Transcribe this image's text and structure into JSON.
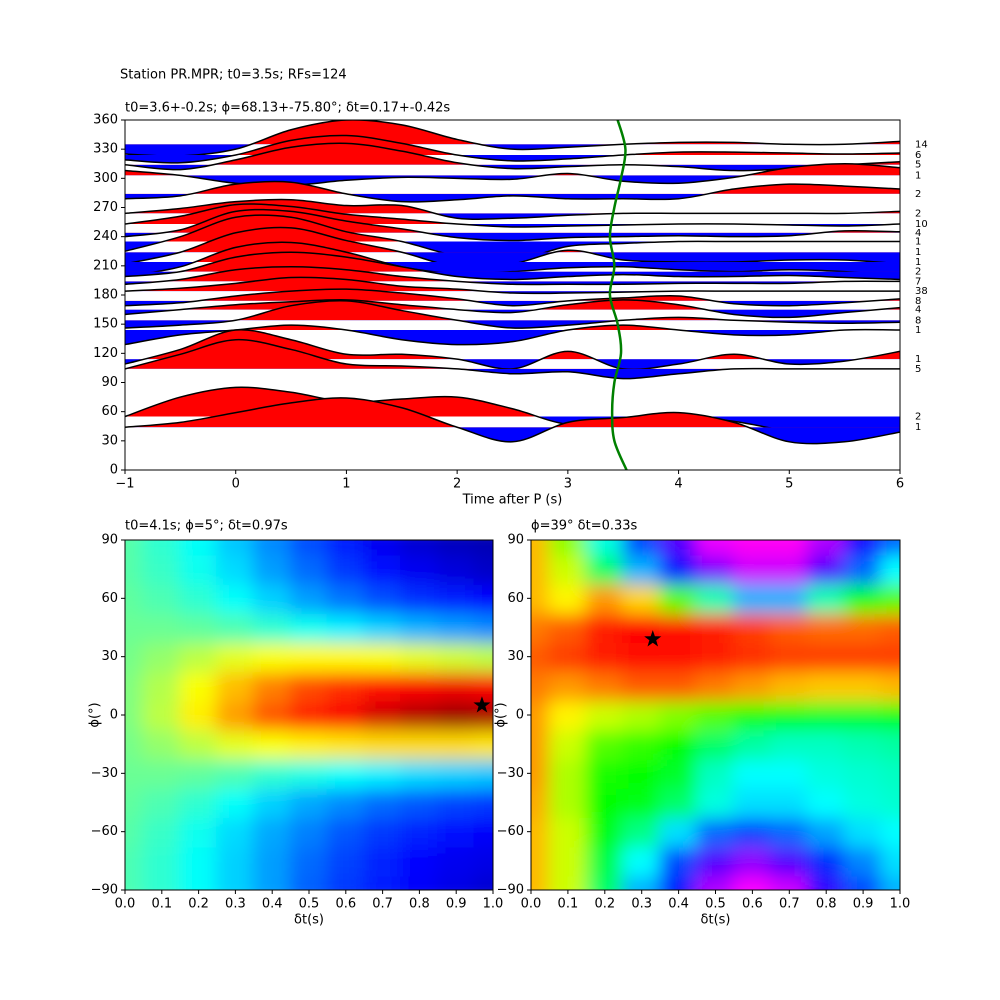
{
  "chart_data": [
    {
      "type": "wiggle",
      "suptitle": "Station PR.MPR; t0=3.5s; RFs=124",
      "title": "t0=3.6+-0.2s; ϕ=68.13+-75.80°; δt=0.17+-0.42s",
      "xlabel": "Time after P (s)",
      "xlim": [
        -1,
        6
      ],
      "xticks": [
        {
          "value": -1,
          "label": "−1"
        },
        0,
        1,
        2,
        3,
        4,
        5,
        6
      ],
      "ylim": [
        0,
        360
      ],
      "yticks": [
        0,
        30,
        60,
        90,
        120,
        150,
        180,
        210,
        240,
        270,
        300,
        330,
        360
      ],
      "positive_color": "#ff0000",
      "negative_color": "#0000ff",
      "line_color": "#000000",
      "x": [
        -1,
        -0.5,
        0,
        0.5,
        1,
        1.5,
        2,
        2.5,
        3,
        3.5,
        4,
        4.5,
        5,
        5.5,
        6
      ],
      "traces": [
        {
          "baz": 335,
          "count": 14,
          "amplitudes": [
            -10,
            -12,
            -5,
            15,
            25,
            20,
            5,
            -5,
            -3,
            0,
            2,
            2,
            0,
            0,
            3
          ]
        },
        {
          "baz": 324,
          "count": 6,
          "amplitudes": [
            -5,
            -8,
            0,
            15,
            20,
            12,
            0,
            -6,
            -4,
            0,
            3,
            3,
            2,
            1,
            2
          ]
        },
        {
          "baz": 314,
          "count": 5,
          "amplitudes": [
            0,
            -5,
            5,
            18,
            22,
            14,
            2,
            -4,
            -2,
            0,
            -2,
            -6,
            -4,
            0,
            3
          ]
        },
        {
          "baz": 303,
          "count": 1,
          "amplitudes": [
            5,
            0,
            -8,
            -10,
            -5,
            -2,
            -3,
            -4,
            2,
            -6,
            -8,
            -2,
            8,
            12,
            8
          ]
        },
        {
          "baz": 284,
          "count": 2,
          "amplitudes": [
            -5,
            -2,
            10,
            12,
            0,
            -8,
            -6,
            -2,
            -5,
            -5,
            -5,
            5,
            10,
            8,
            5
          ]
        },
        {
          "baz": 264,
          "count": 2,
          "amplitudes": [
            0,
            5,
            12,
            14,
            8,
            8,
            -5,
            -5,
            -2,
            0,
            0,
            0,
            0,
            0,
            2
          ]
        },
        {
          "baz": 253,
          "count": 10,
          "amplitudes": [
            0,
            8,
            20,
            18,
            10,
            5,
            0,
            -3,
            -2,
            -1,
            0,
            0,
            -1,
            -2,
            0
          ]
        },
        {
          "baz": 244,
          "count": 4,
          "amplitudes": [
            -4,
            3,
            22,
            22,
            12,
            4,
            -5,
            -8,
            -5,
            -4,
            -3,
            -4,
            -3,
            2,
            1
          ]
        },
        {
          "baz": 235,
          "count": 1,
          "amplitudes": [
            -10,
            5,
            25,
            25,
            10,
            0,
            -15,
            -20,
            -5,
            -2,
            0,
            0,
            0,
            0,
            0
          ]
        },
        {
          "baz": 224,
          "count": 1,
          "amplitudes": [
            -12,
            0,
            20,
            25,
            12,
            0,
            -15,
            -12,
            2,
            -8,
            -10,
            -10,
            -8,
            -8,
            -12
          ]
        },
        {
          "baz": 214,
          "count": 1,
          "amplitudes": [
            -15,
            -5,
            15,
            20,
            10,
            -5,
            -12,
            -10,
            -6,
            -5,
            -8,
            -10,
            -8,
            -10,
            -15
          ]
        },
        {
          "baz": 204,
          "count": 2,
          "amplitudes": [
            -5,
            0,
            15,
            20,
            15,
            5,
            -5,
            -8,
            -5,
            -3,
            -5,
            -5,
            -4,
            -6,
            -8
          ]
        },
        {
          "baz": 194,
          "count": 7,
          "amplitudes": [
            -3,
            2,
            12,
            15,
            12,
            5,
            0,
            -3,
            -3,
            -3,
            -2,
            -2,
            -2,
            0,
            0
          ]
        },
        {
          "baz": 184,
          "count": 38,
          "amplitudes": [
            0,
            3,
            8,
            14,
            12,
            5,
            2,
            -2,
            -2,
            -1,
            0,
            0,
            0,
            0,
            0
          ]
        },
        {
          "baz": 174,
          "count": 8,
          "amplitudes": [
            -5,
            -2,
            5,
            10,
            12,
            8,
            2,
            -5,
            0,
            3,
            5,
            -3,
            -5,
            -2,
            2
          ]
        },
        {
          "baz": 165,
          "count": 4,
          "amplitudes": [
            -5,
            0,
            5,
            8,
            10,
            5,
            0,
            -3,
            5,
            10,
            5,
            -5,
            -8,
            -3,
            2
          ]
        },
        {
          "baz": 154,
          "count": 8,
          "amplitudes": [
            -8,
            -5,
            0,
            15,
            20,
            10,
            0,
            -8,
            -5,
            0,
            3,
            0,
            -2,
            -3,
            -2
          ]
        },
        {
          "baz": 144,
          "count": 1,
          "amplitudes": [
            -15,
            -5,
            0,
            5,
            0,
            -10,
            -15,
            -12,
            0,
            5,
            0,
            -5,
            -5,
            0,
            0
          ]
        },
        {
          "baz": 114,
          "count": 1,
          "amplitudes": [
            -5,
            10,
            30,
            20,
            5,
            5,
            0,
            -10,
            8,
            -10,
            -5,
            5,
            -5,
            -2,
            8
          ]
        },
        {
          "baz": 104,
          "count": 5,
          "amplitudes": [
            0,
            15,
            30,
            20,
            5,
            3,
            0,
            -5,
            -3,
            -10,
            -5,
            0,
            0,
            0,
            0
          ]
        },
        {
          "baz": 55,
          "count": 2,
          "amplitudes": [
            0,
            20,
            30,
            25,
            15,
            18,
            20,
            8,
            -8,
            -5,
            0,
            -5,
            -15,
            -20,
            -15
          ]
        },
        {
          "baz": 44,
          "count": 1,
          "amplitudes": [
            0,
            5,
            15,
            25,
            30,
            20,
            0,
            -15,
            5,
            10,
            15,
            5,
            -15,
            -15,
            -5
          ]
        }
      ],
      "t0_curve": {
        "color": "#008000",
        "y": [
          0,
          30,
          60,
          90,
          120,
          150,
          180,
          210,
          240,
          270,
          300,
          330,
          360
        ],
        "x": [
          3.53,
          3.42,
          3.4,
          3.42,
          3.48,
          3.45,
          3.38,
          3.42,
          3.38,
          3.42,
          3.48,
          3.52,
          3.45
        ]
      }
    },
    {
      "type": "heatmap",
      "title": "t0=4.1s; ϕ=5°; δt=0.97s",
      "colormap": "jet",
      "xlabel": "δt(s)",
      "ylabel": "ϕ(°)",
      "xlim": [
        0,
        1
      ],
      "xticks": [
        {
          "value": 0,
          "label": "0.0"
        },
        0.1,
        0.2,
        0.3,
        0.4,
        0.5,
        0.6,
        0.7,
        0.8,
        0.9,
        {
          "value": 1,
          "label": "1.0"
        }
      ],
      "ylim": [
        -90,
        90
      ],
      "yticks": [
        {
          "value": -90,
          "label": "−90"
        },
        {
          "value": -60,
          "label": "−60"
        },
        {
          "value": -30,
          "label": "−30"
        },
        0,
        30,
        60,
        90
      ],
      "x": [
        0,
        0.1,
        0.2,
        0.3,
        0.4,
        0.5,
        0.6,
        0.7,
        0.8,
        0.9,
        1
      ],
      "y": [
        -90,
        -75,
        -60,
        -45,
        -30,
        -15,
        0,
        15,
        30,
        45,
        60,
        75,
        90
      ],
      "z": [
        [
          0.45,
          0.42,
          0.38,
          0.33,
          0.28,
          0.22,
          0.18,
          0.15,
          0.12,
          0.1,
          0.08
        ],
        [
          0.45,
          0.42,
          0.38,
          0.33,
          0.28,
          0.23,
          0.19,
          0.16,
          0.13,
          0.11,
          0.1
        ],
        [
          0.46,
          0.43,
          0.39,
          0.34,
          0.29,
          0.25,
          0.21,
          0.18,
          0.16,
          0.14,
          0.12
        ],
        [
          0.47,
          0.45,
          0.42,
          0.38,
          0.33,
          0.29,
          0.26,
          0.23,
          0.21,
          0.19,
          0.18
        ],
        [
          0.48,
          0.48,
          0.47,
          0.45,
          0.42,
          0.4,
          0.38,
          0.36,
          0.34,
          0.33,
          0.32
        ],
        [
          0.49,
          0.52,
          0.56,
          0.6,
          0.62,
          0.64,
          0.65,
          0.66,
          0.66,
          0.66,
          0.65
        ],
        [
          0.5,
          0.56,
          0.64,
          0.72,
          0.79,
          0.84,
          0.88,
          0.92,
          0.95,
          0.97,
          0.96
        ],
        [
          0.5,
          0.55,
          0.62,
          0.69,
          0.75,
          0.8,
          0.83,
          0.86,
          0.88,
          0.89,
          0.88
        ],
        [
          0.49,
          0.52,
          0.56,
          0.6,
          0.62,
          0.63,
          0.63,
          0.62,
          0.6,
          0.58,
          0.56
        ],
        [
          0.48,
          0.48,
          0.47,
          0.45,
          0.42,
          0.39,
          0.36,
          0.33,
          0.3,
          0.28,
          0.26
        ],
        [
          0.47,
          0.45,
          0.42,
          0.38,
          0.33,
          0.28,
          0.24,
          0.2,
          0.17,
          0.15,
          0.13
        ],
        [
          0.46,
          0.43,
          0.39,
          0.34,
          0.28,
          0.23,
          0.18,
          0.14,
          0.11,
          0.09,
          0.07
        ],
        [
          0.46,
          0.42,
          0.38,
          0.32,
          0.26,
          0.2,
          0.15,
          0.11,
          0.08,
          0.06,
          0.05
        ]
      ],
      "star": {
        "x": 0.97,
        "y": 5
      }
    },
    {
      "type": "heatmap",
      "title": "ϕ=39° δt=0.33s",
      "colormap": "hsv",
      "xlabel": "δt(s)",
      "ylabel": "ϕ(°)",
      "xlim": [
        0,
        1
      ],
      "xticks": [
        {
          "value": 0,
          "label": "0.0"
        },
        0.1,
        0.2,
        0.3,
        0.4,
        0.5,
        0.6,
        0.7,
        0.8,
        0.9,
        {
          "value": 1,
          "label": "1.0"
        }
      ],
      "ylim": [
        -90,
        90
      ],
      "yticks": [
        {
          "value": -90,
          "label": "−90"
        },
        {
          "value": -60,
          "label": "−60"
        },
        {
          "value": -30,
          "label": "−30"
        },
        0,
        30,
        60,
        90
      ],
      "x": [
        0,
        0.1,
        0.2,
        0.3,
        0.4,
        0.5,
        0.6,
        0.7,
        0.8,
        0.9,
        1
      ],
      "y": [
        -90,
        -75,
        -60,
        -45,
        -30,
        -15,
        0,
        15,
        30,
        45,
        60,
        75,
        90
      ],
      "z": [
        [
          0.12,
          0.2,
          0.4,
          0.55,
          0.65,
          0.78,
          0.83,
          0.8,
          0.7,
          0.62,
          0.55
        ],
        [
          0.12,
          0.2,
          0.38,
          0.5,
          0.62,
          0.72,
          0.76,
          0.72,
          0.64,
          0.58,
          0.52
        ],
        [
          0.12,
          0.2,
          0.35,
          0.42,
          0.52,
          0.6,
          0.62,
          0.6,
          0.56,
          0.52,
          0.5
        ],
        [
          0.11,
          0.22,
          0.33,
          0.35,
          0.4,
          0.48,
          0.52,
          0.52,
          0.5,
          0.48,
          0.47
        ],
        [
          0.1,
          0.22,
          0.32,
          0.33,
          0.36,
          0.46,
          0.5,
          0.5,
          0.48,
          0.47,
          0.46
        ],
        [
          0.1,
          0.2,
          0.28,
          0.3,
          0.33,
          0.4,
          0.44,
          0.46,
          0.46,
          0.45,
          0.44
        ],
        [
          0.1,
          0.16,
          0.2,
          0.22,
          0.25,
          0.28,
          0.32,
          0.35,
          0.36,
          0.36,
          0.35
        ],
        [
          0.08,
          0.1,
          0.08,
          0.06,
          0.06,
          0.08,
          0.1,
          0.12,
          0.13,
          0.13,
          0.12
        ],
        [
          0.06,
          0.04,
          0.02,
          0.01,
          0.01,
          0.02,
          0.03,
          0.04,
          0.04,
          0.04,
          0.04
        ],
        [
          0.08,
          0.06,
          0.02,
          0.0,
          0.01,
          0.02,
          0.04,
          0.06,
          0.07,
          0.07,
          0.06
        ],
        [
          0.12,
          0.16,
          0.1,
          0.14,
          0.28,
          0.45,
          0.55,
          0.55,
          0.45,
          0.35,
          0.28
        ],
        [
          0.12,
          0.2,
          0.4,
          0.55,
          0.65,
          0.75,
          0.8,
          0.8,
          0.72,
          0.6,
          0.5
        ],
        [
          0.12,
          0.24,
          0.48,
          0.62,
          0.72,
          0.82,
          0.84,
          0.84,
          0.78,
          0.68,
          0.6
        ]
      ],
      "star": {
        "x": 0.33,
        "y": 39
      }
    }
  ]
}
